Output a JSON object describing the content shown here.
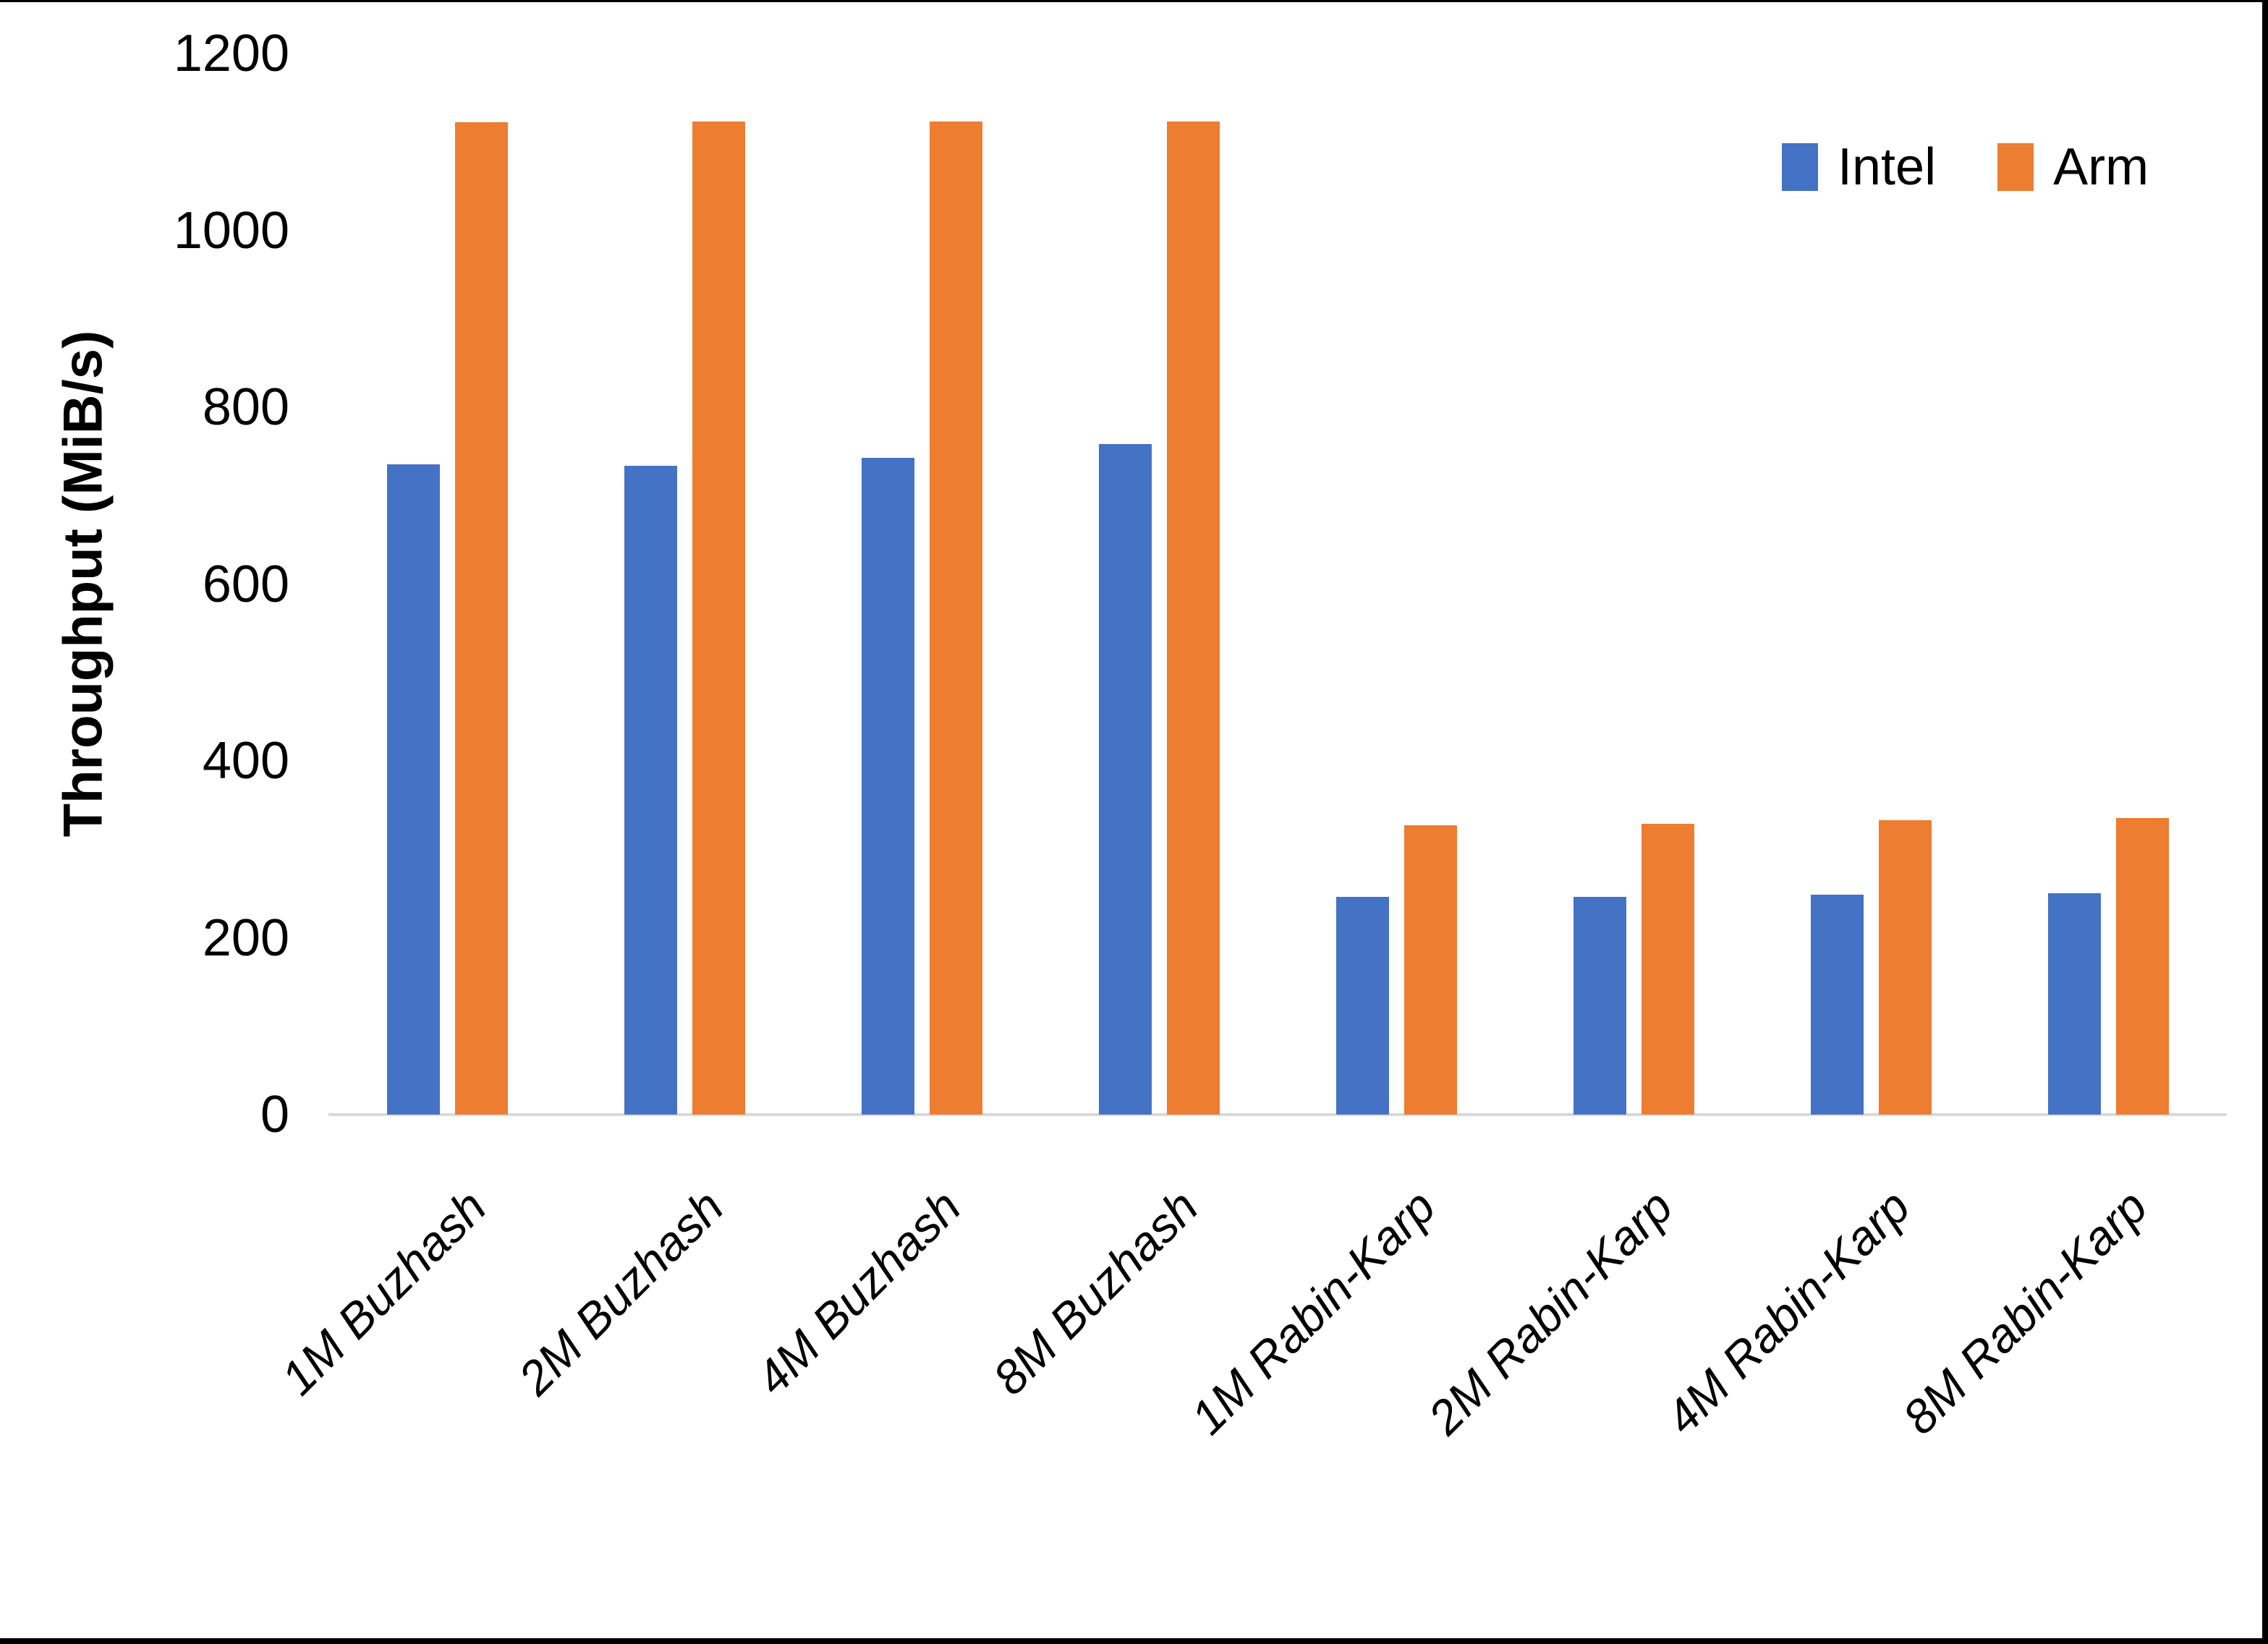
{
  "page": {
    "background": "#FFFFFF",
    "frame_color": "#000000"
  },
  "chart_data": {
    "type": "bar",
    "title": "",
    "xlabel": "",
    "ylabel": "Throughput (MiB/s)",
    "ylim": [
      0,
      1200
    ],
    "yticks": [
      0,
      200,
      400,
      600,
      800,
      1000,
      1200
    ],
    "grid": false,
    "legend_position": "top-right",
    "axis_line_color": "#D9D9D9",
    "categories": [
      "1M Buzhash",
      "2M Buzhash",
      "4M Buzhash",
      "8M Buzhash",
      "1M Rabin-Karp",
      "2M Rabin-Karp",
      "4M Rabin-Karp",
      "8M Rabin-Karp"
    ],
    "series": [
      {
        "name": "Intel",
        "color": "#4472C4",
        "values": [
          735,
          734,
          743,
          758,
          246,
          246,
          249,
          250
        ]
      },
      {
        "name": "Arm",
        "color": "#ED7D31",
        "values": [
          1122,
          1123,
          1123,
          1123,
          327,
          329,
          333,
          335
        ]
      }
    ]
  }
}
